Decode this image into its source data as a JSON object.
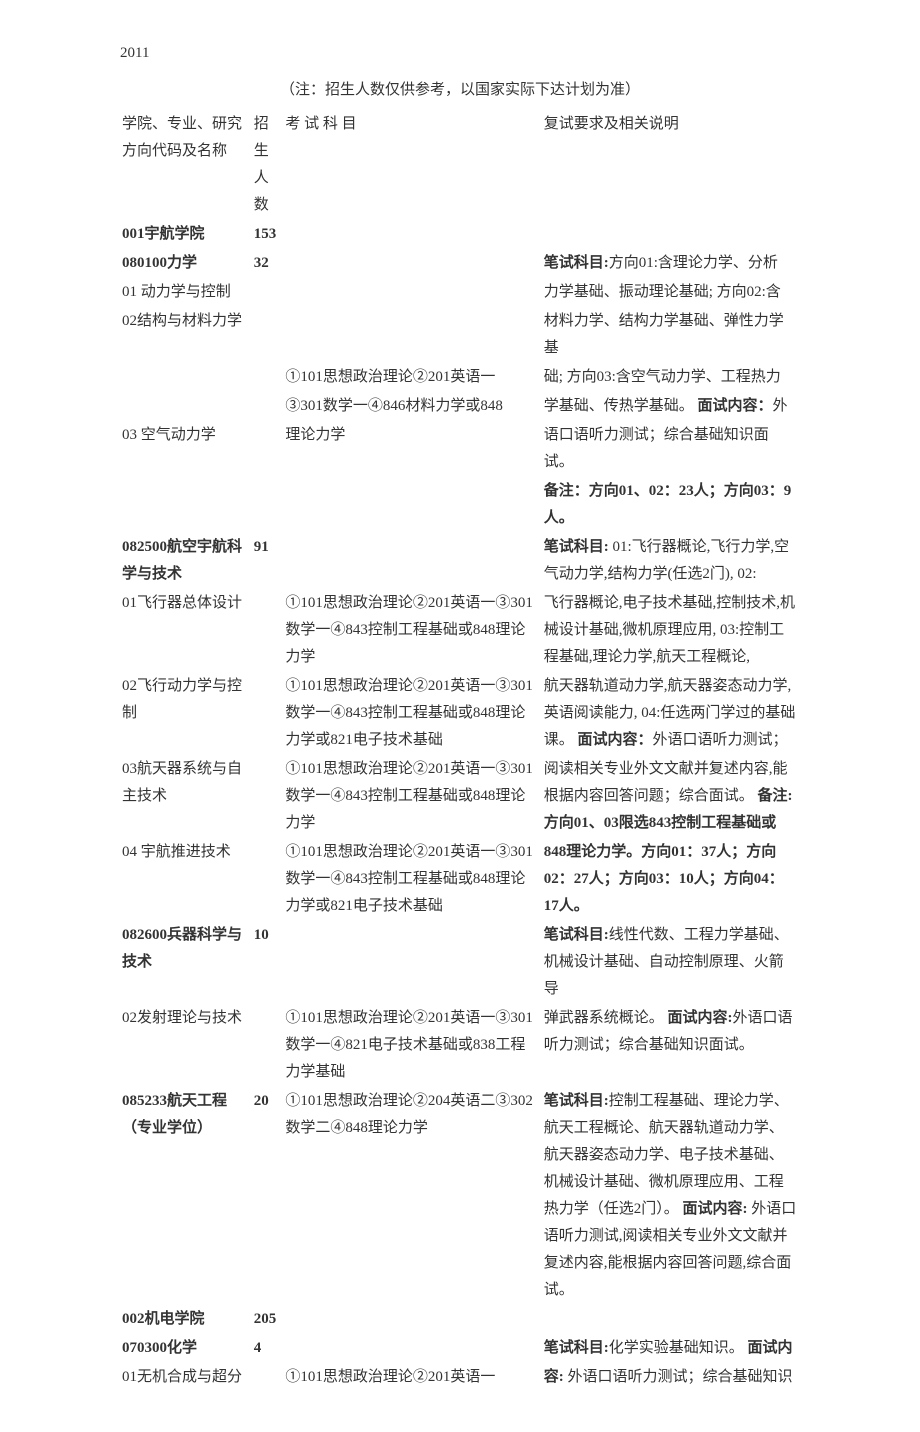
{
  "year": "2011",
  "note": "（注：招生人数仅供参考，以国家实际下达计划为准）",
  "head": {
    "c1": "学院、专业、研究方向代码及名称",
    "c2": "招生人数",
    "c3": "考 试 科 目",
    "c4": "复试要求及相关说明"
  },
  "r1": {
    "c1": "001宇航学院",
    "c2": "153"
  },
  "r2": {
    "c1": "080100力学",
    "c2": "32",
    "c4a": "笔试科目:",
    "c4b": "方向01:含理论力学、分析"
  },
  "r3": {
    "c1": "01 动力学与控制",
    "c4": "力学基础、振动理论基础; 方向02:含"
  },
  "r4": {
    "c1": "02结构与材料力学",
    "c4": "材料力学、结构力学基础、弹性力学基"
  },
  "r5": {
    "c3": "①101思想政治理论②201英语一",
    "c4a": "础; 方向03:含空气动力学、工程热力"
  },
  "r6": {
    "c3": "③301数学一④846材料力学或848",
    "c4a": "学基础、传热学基础。 ",
    "c4b": "面试内容：",
    "c4c": "外"
  },
  "r7": {
    "c1": "03 空气动力学",
    "c3": "理论力学",
    "c4": "语口语听力测试；综合基础知识面试。"
  },
  "r8": {
    "c4": "备注：方向01、02：23人；方向03：9人。"
  },
  "r9": {
    "c1": "082500航空宇航科学与技术",
    "c2": "91",
    "c4a": "笔试科目:",
    "c4b": " 01:飞行器概论,飞行力学,空气动力学,结构力学(任选2门), 02:"
  },
  "r10": {
    "c1": "01飞行器总体设计",
    "c3": "①101思想政治理论②201英语一③301数学一④843控制工程基础或848理论力学",
    "c4": "飞行器概论,电子技术基础,控制技术,机械设计基础,微机原理应用, 03:控制工程基础,理论力学,航天工程概论,"
  },
  "r11": {
    "c1": "02飞行动力学与控制",
    "c3": "①101思想政治理论②201英语一③301数学一④843控制工程基础或848理论力学或821电子技术基础",
    "c4": "航天器轨道动力学,航天器姿态动力学,英语阅读能力, 04:任选两门学过的基础课。 "
  },
  "r11b": {
    "c4a": "面试内容：",
    "c4b": "外语口语听力测试；"
  },
  "r12": {
    "c1": "03航天器系统与自主技术",
    "c3": "①101思想政治理论②201英语一③301数学一④843控制工程基础或848理论力学",
    "c4a": "阅读相关专业外文文献并复述内容,能根据内容回答问题；综合面试。 ",
    "c4b": "备注:方向01、03限选843控制工程基础或"
  },
  "r13": {
    "c1": "04 宇航推进技术",
    "c3": "①101思想政治理论②201英语一③301数学一④843控制工程基础或848理论力学或821电子技术基础",
    "c4": "848理论力学。方向01：37人；方向02：27人；方向03：10人；方向04：17人。"
  },
  "r14": {
    "c1": "082600兵器科学与技术",
    "c2": "10",
    "c4a": "笔试科目:",
    "c4b": "线性代数、工程力学基础、机械设计基础、自动控制原理、火箭导"
  },
  "r15": {
    "c1": "02发射理论与技术",
    "c3": "①101思想政治理论②201英语一③301数学一④821电子技术基础或838工程力学基础",
    "c4a": "弹武器系统概论。 ",
    "c4b": "面试内容:",
    "c4c": "外语口语听力测试；综合基础知识面试。"
  },
  "r16": {
    "c1": "085233航天工程（专业学位）",
    "c2": "20",
    "c3": "①101思想政治理论②204英语二③302数学二④848理论力学",
    "c4a": "笔试科目:",
    "c4b": "控制工程基础、理论力学、航天工程概论、航天器轨道动力学、航天器姿态动力学、电子技术基础、机械设计基础、微机原理应用、工程热力学（任选2门）。 ",
    "c4c": "面试内容:",
    "c4d": " 外语口语听力测试,阅读相关专业外文文献并复述内容,能根据内容回答问题,综合面试。"
  },
  "r17": {
    "c1": "002机电学院",
    "c2": "205"
  },
  "r18": {
    "c1": "070300化学",
    "c2": "4",
    "c4a": "笔试科目:",
    "c4b": "化学实验基础知识。 ",
    "c4c": "面试内"
  },
  "r19": {
    "c1": "01无机合成与超分",
    "c3": "①101思想政治理论②201英语一",
    "c4a": "容:",
    "c4b": " 外语口语听力测试；综合基础知识"
  }
}
